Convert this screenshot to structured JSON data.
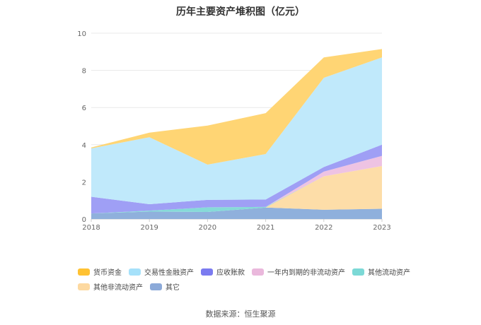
{
  "title": "历年主要资产堆积图（亿元）",
  "source": "数据来源：恒生聚源",
  "chart_data": {
    "type": "area",
    "stacked": true,
    "title": "历年主要资产堆积图（亿元）",
    "xlabel": "",
    "ylabel": "",
    "categories": [
      "2018",
      "2019",
      "2020",
      "2021",
      "2022",
      "2023"
    ],
    "ylim": [
      0,
      10
    ],
    "yticks": [
      0,
      2,
      4,
      6,
      8,
      10
    ],
    "grid": true,
    "legend_position": "bottom",
    "series": [
      {
        "name": "其它",
        "color": "#8fb0dc",
        "values": [
          0.3,
          0.4,
          0.38,
          0.62,
          0.5,
          0.55
        ]
      },
      {
        "name": "其他非流动资产",
        "color": "#fddda8",
        "values": [
          0.0,
          0.0,
          0.0,
          0.0,
          1.8,
          2.3
        ]
      },
      {
        "name": "其他流动资产",
        "color": "#86dad8",
        "values": [
          0.0,
          0.05,
          0.25,
          0.03,
          0.0,
          0.0
        ]
      },
      {
        "name": "一年内到期的非流动资产",
        "color": "#eec3e3",
        "values": [
          0.0,
          0.0,
          0.0,
          0.0,
          0.25,
          0.55
        ]
      },
      {
        "name": "应收账款",
        "color": "#9f9ff5",
        "values": [
          0.9,
          0.35,
          0.4,
          0.4,
          0.25,
          0.6
        ]
      },
      {
        "name": "交易性金融资产",
        "color": "#c0e9fb",
        "values": [
          2.6,
          3.6,
          1.9,
          2.45,
          4.8,
          4.7
        ]
      },
      {
        "name": "货币资金",
        "color": "#ffd574",
        "values": [
          0.05,
          0.25,
          2.1,
          2.2,
          1.1,
          0.45
        ]
      }
    ]
  },
  "legend": [
    {
      "label": "货币资金",
      "color": "#ffc233"
    },
    {
      "label": "交易性金融资产",
      "color": "#a6e1fa"
    },
    {
      "label": "应收账款",
      "color": "#7b7bf0"
    },
    {
      "label": "一年内到期的非流动资产",
      "color": "#eab8dc"
    },
    {
      "label": "其他流动资产",
      "color": "#7cd9d6"
    },
    {
      "label": "其他非流动资产",
      "color": "#fdd9a0"
    },
    {
      "label": "其它",
      "color": "#8caad9"
    }
  ]
}
